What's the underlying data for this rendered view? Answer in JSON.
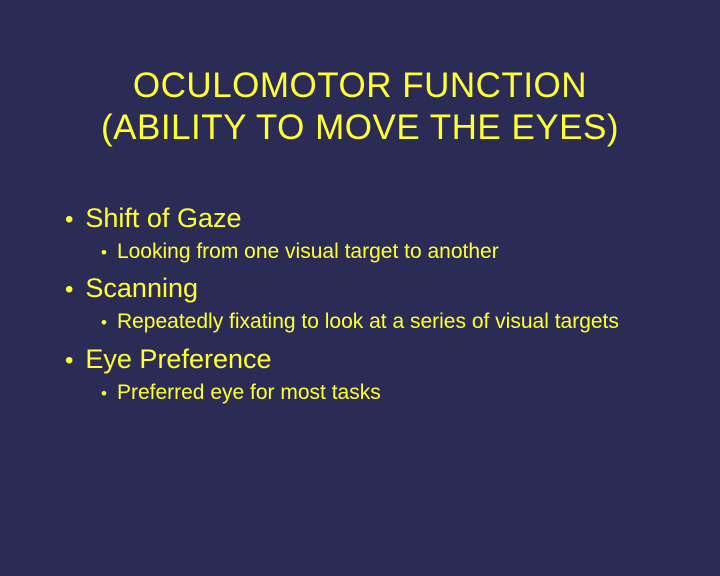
{
  "slide": {
    "background_color": "#2b2c56",
    "text_color": "#ffff33",
    "font_family": "Verdana, Geneva, sans-serif",
    "title_line1": "OCULOMOTOR FUNCTION",
    "title_line2": "(ABILITY TO MOVE THE EYES)",
    "title_fontsize": 35,
    "heading_fontsize": 27,
    "sub_fontsize": 21,
    "bullet_char": "•",
    "items": [
      {
        "heading": "Shift of Gaze",
        "sub": "Looking from one visual target to another"
      },
      {
        "heading": "Scanning",
        "sub": "Repeatedly fixating to look at a series of visual targets"
      },
      {
        "heading": "Eye Preference",
        "sub": "Preferred eye for most tasks"
      }
    ]
  }
}
